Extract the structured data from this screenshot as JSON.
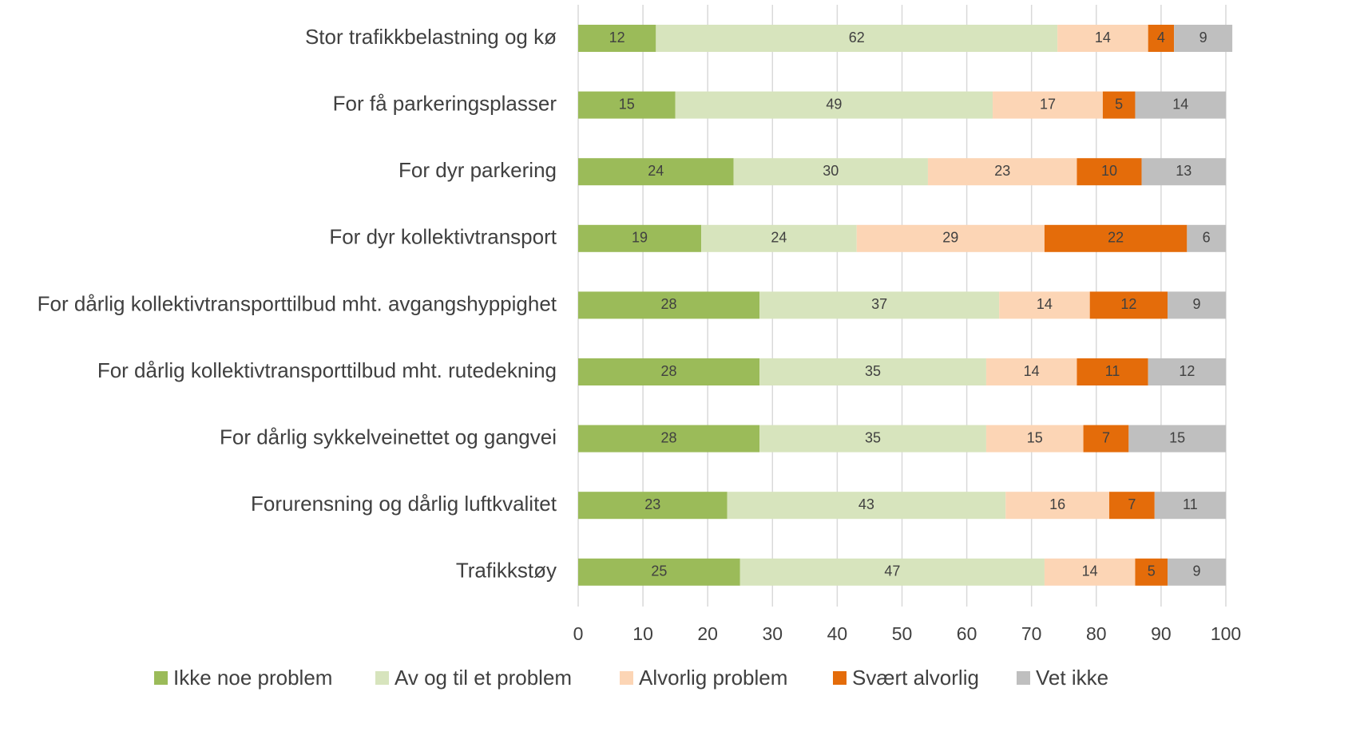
{
  "chart_data": {
    "type": "stacked_barh",
    "categories": [
      "Stor trafikkbelastning og kø",
      "For få parkeringsplasser",
      "For dyr parkering",
      "For dyr kollektivtransport",
      "For dårlig kollektivtransporttilbud mht. avgangshyppighet",
      "For dårlig kollektivtransporttilbud mht. rutedekning",
      "For dårlig sykkelveinettet og gangvei",
      "Forurensning og dårlig luftkvalitet",
      "Trafikkstøy"
    ],
    "series": [
      {
        "name": "Ikke noe problem",
        "color": "#9bbb59",
        "values": [
          12,
          15,
          24,
          19,
          28,
          28,
          28,
          23,
          25
        ]
      },
      {
        "name": "Av og til et problem",
        "color": "#d7e4bd",
        "values": [
          62,
          49,
          30,
          24,
          37,
          35,
          35,
          43,
          47
        ]
      },
      {
        "name": "Alvorlig problem",
        "color": "#fcd5b5",
        "values": [
          14,
          17,
          23,
          29,
          14,
          14,
          15,
          16,
          14
        ]
      },
      {
        "name": "Svært alvorlig",
        "color": "#e46c0a",
        "values": [
          4,
          5,
          10,
          22,
          12,
          11,
          7,
          7,
          5
        ]
      },
      {
        "name": "Vet ikke",
        "color": "#bfbfbf",
        "values": [
          9,
          14,
          13,
          6,
          9,
          12,
          15,
          11,
          9
        ]
      }
    ],
    "xlim": [
      0,
      100
    ],
    "xticks": [
      0,
      10,
      20,
      30,
      40,
      50,
      60,
      70,
      80,
      90,
      100
    ],
    "grid": true,
    "legend": "bottom"
  }
}
